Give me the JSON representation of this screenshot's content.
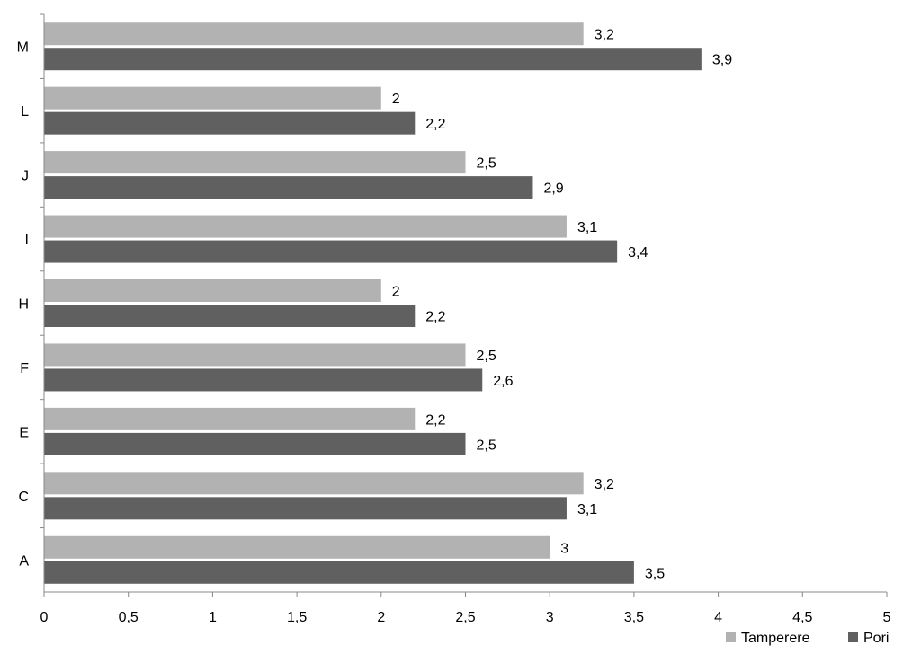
{
  "chart_data": {
    "type": "bar",
    "orientation": "horizontal",
    "categories": [
      "A",
      "C",
      "E",
      "F",
      "H",
      "I",
      "J",
      "L",
      "M"
    ],
    "series": [
      {
        "name": "Tamperere",
        "values": [
          3,
          3.2,
          2.2,
          2.5,
          2,
          3.1,
          2.5,
          2,
          3.2
        ],
        "color": "#b2b2b2"
      },
      {
        "name": "Pori",
        "values": [
          3.5,
          3.1,
          2.5,
          2.6,
          2.2,
          3.4,
          2.9,
          2.2,
          3.9
        ],
        "color": "#606060"
      }
    ],
    "value_labels": {
      "Tamperere": [
        "3",
        "3,2",
        "2,2",
        "2,5",
        "2",
        "3,1",
        "2,5",
        "2",
        "3,2"
      ],
      "Pori": [
        "3,5",
        "3,1",
        "2,5",
        "2,6",
        "2,2",
        "3,4",
        "2,9",
        "2,2",
        "3,9"
      ]
    },
    "x_ticks": [
      0,
      0.5,
      1,
      1.5,
      2,
      2.5,
      3,
      3.5,
      4,
      4.5,
      5
    ],
    "x_tick_labels": [
      "0",
      "0,5",
      "1",
      "1,5",
      "2",
      "2,5",
      "3",
      "3,5",
      "4",
      "4,5",
      "5"
    ],
    "xlim": [
      0,
      5
    ],
    "title": "",
    "xlabel": "",
    "ylabel": "",
    "grid": false,
    "legend": {
      "position": "bottom-right",
      "entries": [
        "Tamperere",
        "Pori"
      ]
    }
  }
}
